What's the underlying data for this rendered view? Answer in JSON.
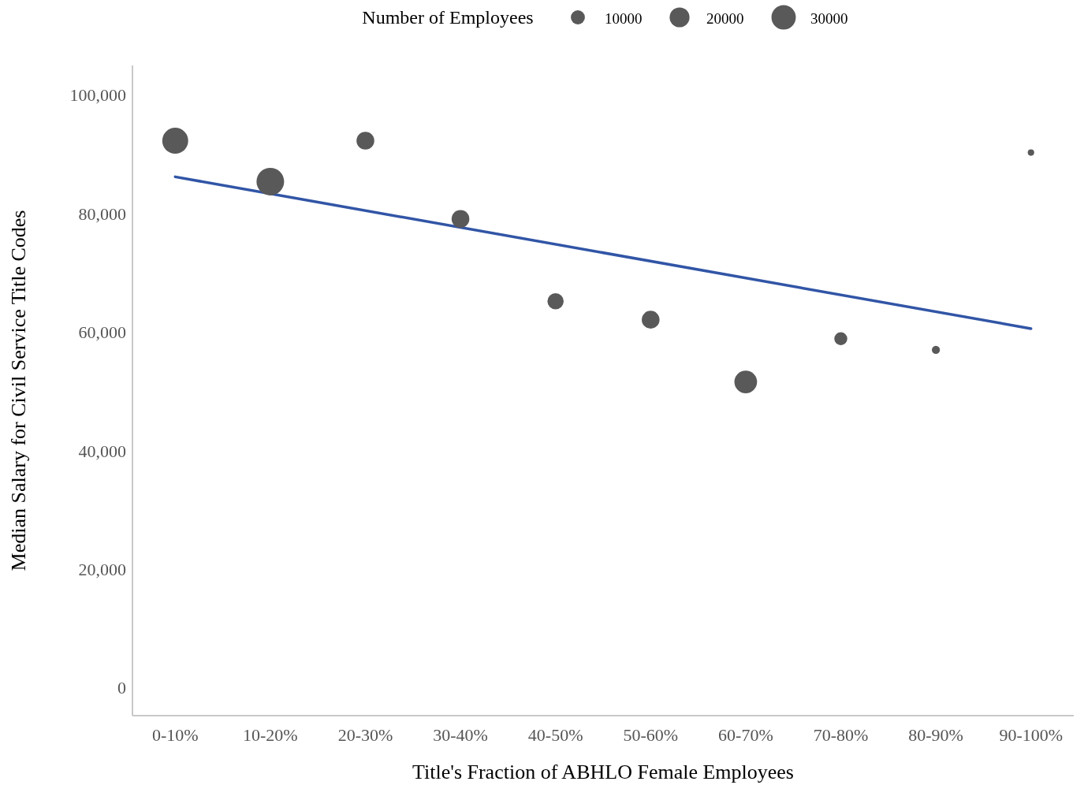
{
  "chart_data": {
    "type": "bubble",
    "xlabel": "Title's Fraction of ABHLO Female Employees",
    "ylabel": "Median Salary for Civil Service Title Codes",
    "legend_title": "Number of Employees",
    "size_legend": [
      10000,
      20000,
      30000
    ],
    "categories": [
      "0-10%",
      "10-20%",
      "20-30%",
      "30-40%",
      "40-50%",
      "50-60%",
      "60-70%",
      "70-80%",
      "80-90%",
      "90-100%"
    ],
    "ylim": [
      -4700,
      105000
    ],
    "yticks": [
      {
        "value": 0,
        "label": "0"
      },
      {
        "value": 20000,
        "label": "20,000"
      },
      {
        "value": 40000,
        "label": "40,000"
      },
      {
        "value": 60000,
        "label": "60,000"
      },
      {
        "value": 80000,
        "label": "80,000"
      },
      {
        "value": 100000,
        "label": "100,000"
      }
    ],
    "series": [
      {
        "color": "#595959",
        "values": [
          92300,
          85400,
          92300,
          79100,
          65200,
          62100,
          51600,
          58900,
          57000,
          90300
        ],
        "sizes": [
          34000,
          38500,
          16000,
          16000,
          13300,
          16000,
          26000,
          8500,
          3300,
          2100
        ]
      },
      {
        "type": "line",
        "color": "#3155a6",
        "x": [
          "0-10%",
          "90-100%"
        ],
        "values": [
          86200,
          60600
        ]
      }
    ]
  }
}
